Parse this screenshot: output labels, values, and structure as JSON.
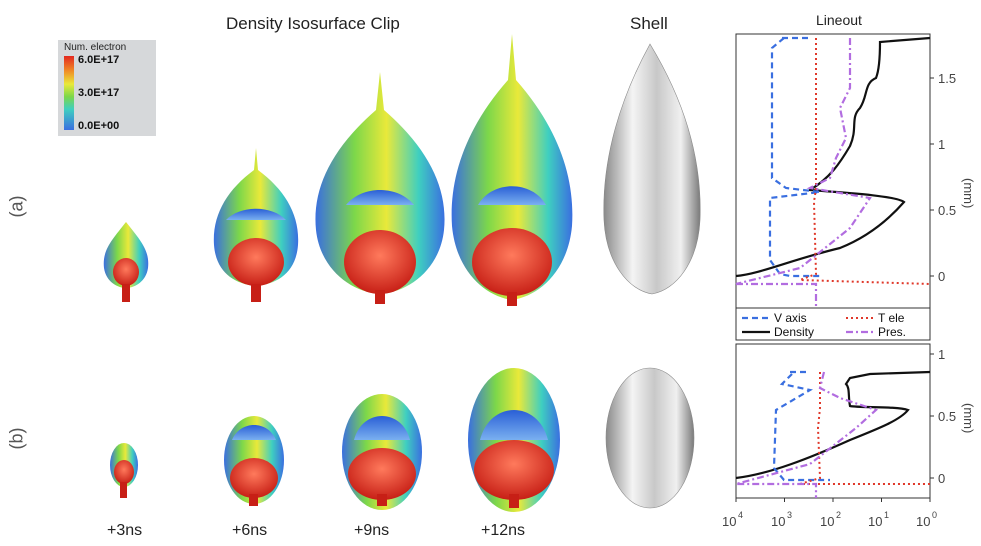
{
  "titles": {
    "main": "Density Isosurface Clip",
    "shell": "Shell",
    "lineout": "Lineout"
  },
  "row_labels": [
    "(a)",
    "(b)"
  ],
  "time_labels": [
    "+3ns",
    "+6ns",
    "+9ns",
    "+12ns"
  ],
  "colorbar": {
    "title": "Num. electron",
    "ticks": [
      "6.0E+17",
      "3.0E+17",
      "0.0E+00"
    ]
  },
  "lineout": {
    "y_unit": "(mm)",
    "top_yticks": [
      "1.5",
      "1",
      "0.5",
      "0"
    ],
    "bottom_yticks": [
      "1",
      "0.5",
      "0"
    ],
    "x_tick_exponents": [
      "4",
      "3",
      "2",
      "1",
      "0"
    ],
    "x_tick_base": "10",
    "legend": [
      {
        "label": "V axis",
        "color": "#3a6fe0",
        "style": "dashed"
      },
      {
        "label": "T ele",
        "color": "#e0382a",
        "style": "dotted"
      },
      {
        "label": "Density",
        "color": "#111111",
        "style": "solid"
      },
      {
        "label": "Pres.",
        "color": "#b26de0",
        "style": "dashdot"
      }
    ]
  }
}
